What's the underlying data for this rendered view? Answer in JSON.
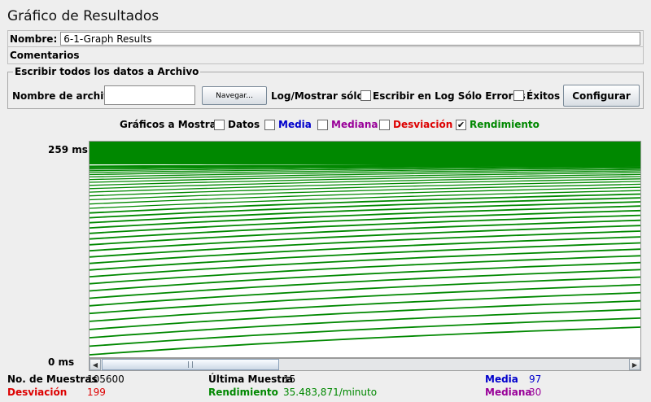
{
  "window": {
    "title": "Gráfico de Resultados"
  },
  "name_field": {
    "label": "Nombre:",
    "value": "6-1-Graph Results"
  },
  "comments": {
    "label": "Comentarios"
  },
  "file_panel": {
    "legend": "Escribir todos los datos a Archivo",
    "filename_label": "Nombre de archivo",
    "filename_value": "",
    "browse_label": "Navegar...",
    "log_label": "Log/Mostrar sólo:",
    "errors_only_label": "Escribir en Log Sólo Errores",
    "errors_only_checked": false,
    "success_label": "Éxitos",
    "success_checked": false,
    "configure_label": "Configurar"
  },
  "graph_options": {
    "label": "Gráficos a Mostrar",
    "items": [
      {
        "label": "Datos",
        "checked": false,
        "color": "#000000"
      },
      {
        "label": "Media",
        "checked": false,
        "color": "#0000cc"
      },
      {
        "label": "Mediana",
        "checked": false,
        "color": "#990099"
      },
      {
        "label": "Desviación",
        "checked": false,
        "color": "#dd0000"
      },
      {
        "label": "Rendimiento",
        "checked": true,
        "color": "#008800"
      }
    ]
  },
  "axis": {
    "y_max_label": "259  ms",
    "y_min_label": "0  ms"
  },
  "chart_data": {
    "type": "line",
    "series_name": "Rendimiento",
    "color": "#008800",
    "y_max": 259,
    "y_min": 0,
    "note_lines": "Multiple throughput curves rising from left to right, densely stacked near the top."
  },
  "stats": {
    "samples_label": "No. de Muestras",
    "samples_value": "105600",
    "last_sample_label": "Última Muestra",
    "last_sample_value": "15",
    "average_label": "Media",
    "average_value": "97",
    "deviation_label": "Desviación",
    "deviation_value": "199",
    "throughput_label": "Rendimiento",
    "throughput_value": "35.483,871/minuto",
    "median_label": "Mediana",
    "median_value": "30"
  },
  "colors": {
    "throughput": "#008800",
    "average": "#0000cc",
    "median": "#990099",
    "deviation": "#dd0000"
  }
}
